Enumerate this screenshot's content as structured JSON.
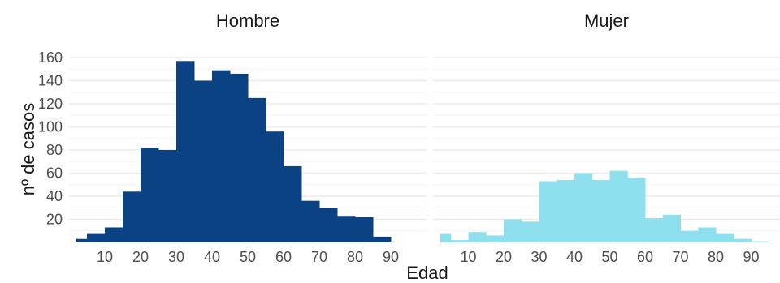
{
  "chart_data": {
    "type": "bar",
    "xlabel": "Edad",
    "ylabel": "nº de casos",
    "xlim": [
      0,
      95
    ],
    "ylim": [
      0,
      160
    ],
    "x_ticks": [
      10,
      20,
      30,
      40,
      50,
      60,
      70,
      80,
      90
    ],
    "y_ticks": [
      20,
      40,
      60,
      80,
      100,
      120,
      140,
      160
    ],
    "grid": true,
    "bin_width": 5,
    "bin_starts": [
      0,
      5,
      10,
      15,
      20,
      25,
      30,
      35,
      40,
      45,
      50,
      55,
      60,
      65,
      70,
      75,
      80,
      85,
      90
    ],
    "facets": [
      {
        "title": "Hombre",
        "color": "#0b4283",
        "values": [
          3,
          8,
          13,
          44,
          82,
          80,
          157,
          140,
          149,
          146,
          125,
          96,
          66,
          36,
          30,
          23,
          22,
          5,
          0
        ]
      },
      {
        "title": "Mujer",
        "color": "#8ee0ef",
        "values": [
          8,
          2,
          9,
          6,
          20,
          18,
          53,
          54,
          60,
          54,
          62,
          56,
          21,
          24,
          10,
          13,
          8,
          3,
          1
        ]
      }
    ]
  }
}
